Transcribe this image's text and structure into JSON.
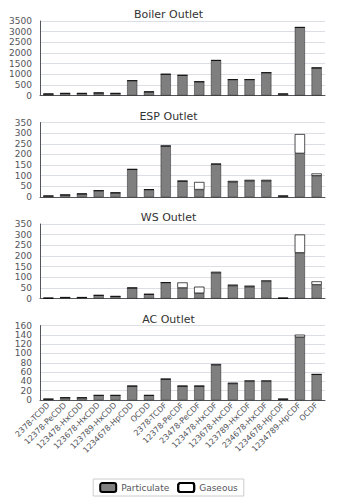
{
  "chart_data": [
    {
      "type": "bar",
      "title": "Boiler Outlet",
      "categories": [
        "2378-TCDD",
        "12378-PeCDD",
        "123478-HxCDD",
        "123678-HxCDD",
        "123789-HxCDD",
        "1234678-HpCDD",
        "OCDD",
        "2378-TCDF",
        "12378-PeCDF",
        "23478-PeCDF",
        "123478-HxCDF",
        "123678-HxCDF",
        "123789-HxCDF",
        "234678-HxCDF",
        "1234678-HpCDF",
        "1234789-HpCDF",
        "OCDF"
      ],
      "series": [
        {
          "name": "Particulate",
          "color": "#7f7f7f",
          "values": [
            75,
            100,
            100,
            125,
            100,
            700,
            175,
            1000,
            950,
            650,
            1650,
            750,
            750,
            1075,
            75,
            3200,
            1300
          ]
        },
        {
          "name": "Gaseous",
          "color": "#ffffff",
          "values": [
            0,
            0,
            0,
            0,
            0,
            0,
            0,
            0,
            0,
            0,
            0,
            0,
            0,
            0,
            0,
            0,
            0
          ]
        }
      ],
      "stacked": true,
      "ylim": [
        0,
        3500
      ],
      "yticks": [
        0,
        500,
        1000,
        1500,
        2000,
        2500,
        3000,
        3500
      ],
      "grid": true,
      "tick_labels": "y"
    },
    {
      "type": "bar",
      "title": "ESP Outlet",
      "categories": [
        "2378-TCDD",
        "12378-PeCDD",
        "123478-HxCDD",
        "123678-HxCDD",
        "123789-HxCDD",
        "1234678-HpCDD",
        "OCDD",
        "2378-TCDF",
        "12378-PeCDF",
        "23478-PeCDF",
        "123478-HxCDF",
        "123678-HxCDF",
        "123789-HxCDF",
        "234678-HxCDF",
        "1234678-HpCDF",
        "1234789-HpCDF",
        "OCDF"
      ],
      "series": [
        {
          "name": "Particulate",
          "color": "#7f7f7f",
          "values": [
            5,
            10,
            15,
            30,
            20,
            130,
            35,
            240,
            75,
            35,
            155,
            70,
            75,
            75,
            5,
            205,
            100
          ]
        },
        {
          "name": "Gaseous",
          "color": "#ffffff",
          "values": [
            0,
            0,
            0,
            0,
            0,
            0,
            0,
            0,
            0,
            35,
            0,
            5,
            5,
            5,
            0,
            90,
            10
          ]
        }
      ],
      "stacked": true,
      "ylim": [
        0,
        350
      ],
      "yticks": [
        0,
        50,
        100,
        150,
        200,
        250,
        300,
        350
      ],
      "grid": true,
      "tick_labels": "y"
    },
    {
      "type": "bar",
      "title": "WS Outlet",
      "categories": [
        "2378-TCDD",
        "12378-PeCDD",
        "123478-HxCDD",
        "123678-HxCDD",
        "123789-HxCDD",
        "1234678-HpCDD",
        "OCDD",
        "2378-TCDF",
        "12378-PeCDF",
        "23478-PeCDF",
        "123478-HxCDF",
        "123678-HxCDF",
        "123789-HxCDF",
        "234678-HxCDF",
        "1234678-HpCDF",
        "1234789-HpCDF",
        "OCDF"
      ],
      "series": [
        {
          "name": "Particulate",
          "color": "#7f7f7f",
          "values": [
            2,
            5,
            5,
            15,
            10,
            50,
            20,
            75,
            50,
            25,
            120,
            60,
            55,
            80,
            2,
            215,
            65
          ]
        },
        {
          "name": "Gaseous",
          "color": "#ffffff",
          "values": [
            0,
            0,
            0,
            0,
            0,
            0,
            0,
            0,
            25,
            30,
            5,
            5,
            5,
            5,
            0,
            85,
            15
          ]
        }
      ],
      "stacked": true,
      "ylim": [
        0,
        350
      ],
      "yticks": [
        0,
        50,
        100,
        150,
        200,
        250,
        300,
        350
      ],
      "grid": true,
      "tick_labels": "y"
    },
    {
      "type": "bar",
      "title": "AC Outlet",
      "categories": [
        "2378-TCDD",
        "12378-PeCDD",
        "123478-HxCDD",
        "123678-HxCDD",
        "123789-HxCDD",
        "1234678-HpCDD",
        "OCDD",
        "2378-TCDF",
        "12378-PeCDF",
        "23478-PeCDF",
        "123478-HxCDF",
        "123678-HxCDF",
        "123789-HxCDF",
        "234678-HxCDF",
        "1234678-HpCDF",
        "1234789-HpCDF",
        "OCDF"
      ],
      "series": [
        {
          "name": "Particulate",
          "color": "#7f7f7f",
          "values": [
            2,
            5,
            5,
            10,
            10,
            30,
            10,
            45,
            30,
            30,
            75,
            35,
            40,
            40,
            2,
            135,
            55
          ]
        },
        {
          "name": "Gaseous",
          "color": "#ffffff",
          "values": [
            0,
            0,
            0,
            0,
            0,
            0,
            0,
            0,
            0,
            0,
            2,
            2,
            2,
            2,
            0,
            5,
            0
          ]
        }
      ],
      "stacked": true,
      "ylim": [
        0,
        160
      ],
      "yticks": [
        0,
        20,
        40,
        60,
        80,
        100,
        120,
        140,
        160
      ],
      "grid": true,
      "legend": "bottom"
    }
  ]
}
